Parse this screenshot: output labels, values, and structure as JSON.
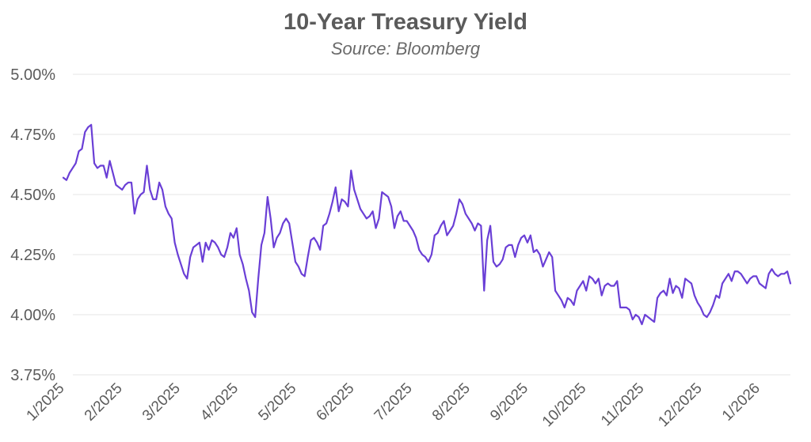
{
  "chart_data": {
    "type": "line",
    "title": "10-Year Treasury Yield",
    "subtitle": "Source: Bloomberg",
    "xlabel": "",
    "ylabel": "",
    "ylim": [
      3.75,
      5.0
    ],
    "yticks": [
      3.75,
      4.0,
      4.25,
      4.5,
      4.75,
      5.0
    ],
    "ytick_labels": [
      "3.75%",
      "4.00%",
      "4.25%",
      "4.50%",
      "4.75%",
      "5.00%"
    ],
    "xtick_labels": [
      "1/2025",
      "2/2025",
      "3/2025",
      "4/2025",
      "5/2025",
      "6/2025",
      "7/2025",
      "8/2025",
      "9/2025",
      "10/2025",
      "11/2025",
      "12/2025",
      "1/2026"
    ],
    "grid": true,
    "line_color": "#6a3fd6",
    "series": [
      {
        "values": [
          4.57,
          4.56,
          4.59,
          4.61,
          4.63,
          4.68,
          4.69,
          4.76,
          4.78,
          4.79,
          4.63,
          4.61,
          4.62,
          4.62,
          4.57,
          4.64,
          4.59,
          4.54,
          4.53,
          4.52,
          4.54,
          4.55,
          4.55,
          4.42,
          4.48,
          4.5,
          4.51,
          4.62,
          4.52,
          4.48,
          4.48,
          4.55,
          4.52,
          4.45,
          4.42,
          4.4,
          4.3,
          4.25,
          4.21,
          4.17,
          4.15,
          4.24,
          4.28,
          4.29,
          4.3,
          4.22,
          4.3,
          4.27,
          4.31,
          4.3,
          4.28,
          4.25,
          4.24,
          4.28,
          4.34,
          4.32,
          4.36,
          4.25,
          4.21,
          4.15,
          4.1,
          4.01,
          3.99,
          4.15,
          4.29,
          4.34,
          4.49,
          4.4,
          4.28,
          4.32,
          4.34,
          4.38,
          4.4,
          4.38,
          4.3,
          4.22,
          4.2,
          4.17,
          4.16,
          4.24,
          4.31,
          4.32,
          4.3,
          4.27,
          4.37,
          4.38,
          4.42,
          4.47,
          4.53,
          4.43,
          4.48,
          4.47,
          4.45,
          4.6,
          4.52,
          4.48,
          4.44,
          4.42,
          4.4,
          4.41,
          4.43,
          4.36,
          4.4,
          4.51,
          4.5,
          4.49,
          4.45,
          4.36,
          4.41,
          4.43,
          4.39,
          4.39,
          4.37,
          4.35,
          4.32,
          4.27,
          4.25,
          4.24,
          4.22,
          4.25,
          4.33,
          4.34,
          4.37,
          4.39,
          4.33,
          4.35,
          4.37,
          4.42,
          4.48,
          4.46,
          4.42,
          4.4,
          4.38,
          4.35,
          4.38,
          4.37,
          4.1,
          4.31,
          4.37,
          4.22,
          4.2,
          4.21,
          4.23,
          4.28,
          4.29,
          4.29,
          4.24,
          4.29,
          4.32,
          4.33,
          4.3,
          4.33,
          4.26,
          4.27,
          4.25,
          4.2,
          4.23,
          4.26,
          4.24,
          4.1,
          4.08,
          4.06,
          4.03,
          4.07,
          4.06,
          4.04,
          4.1,
          4.12,
          4.14,
          4.1,
          4.16,
          4.15,
          4.13,
          4.15,
          4.08,
          4.12,
          4.13,
          4.12,
          4.12,
          4.14,
          4.03,
          4.03,
          4.03,
          4.02,
          3.98,
          4.0,
          3.99,
          3.96,
          4.0,
          3.99,
          3.98,
          3.97,
          4.07,
          4.09,
          4.1,
          4.08,
          4.15,
          4.09,
          4.12,
          4.11,
          4.07,
          4.15,
          4.14,
          4.13,
          4.08,
          4.05,
          4.03,
          4.0,
          3.99,
          4.01,
          4.04,
          4.08,
          4.07,
          4.13,
          4.15,
          4.17,
          4.14,
          4.18,
          4.18,
          4.17,
          4.15,
          4.13,
          4.15,
          4.16,
          4.16,
          4.13,
          4.12,
          4.11,
          4.17,
          4.19,
          4.17,
          4.16,
          4.17,
          4.17,
          4.18,
          4.13
        ]
      }
    ]
  }
}
